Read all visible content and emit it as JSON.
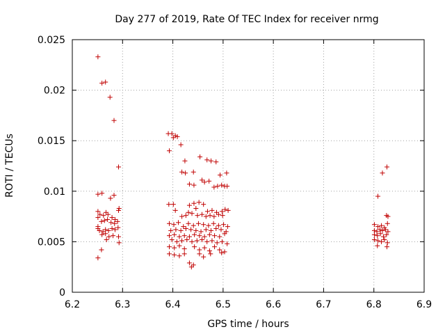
{
  "chart_data": {
    "type": "scatter",
    "title": "Day 277 of 2019, Rate Of TEC Index for receiver nrmg",
    "xlabel": "GPS time / hours",
    "ylabel": "ROTI / TECUs",
    "xlim": [
      6.2,
      6.9
    ],
    "ylim": [
      0,
      0.025
    ],
    "grid": true,
    "marker": "+",
    "marker_color": "#c00000",
    "xticks": [
      6.2,
      6.3,
      6.4,
      6.5,
      6.6,
      6.7,
      6.8,
      6.9
    ],
    "xtick_labels": [
      "6.2",
      "6.3",
      "6.4",
      "6.5",
      "6.6",
      "6.7",
      "6.8",
      "6.9"
    ],
    "yticks": [
      0,
      0.005,
      0.01,
      0.015,
      0.02,
      0.025
    ],
    "ytick_labels": [
      "0",
      "0.005",
      "0.01",
      "0.015",
      "0.02",
      "0.025"
    ],
    "series": [
      {
        "name": "ROTI",
        "points": [
          [
            6.251,
            0.0233
          ],
          [
            6.259,
            0.0207
          ],
          [
            6.266,
            0.0208
          ],
          [
            6.275,
            0.0193
          ],
          [
            6.283,
            0.017
          ],
          [
            6.292,
            0.0124
          ],
          [
            6.251,
            0.0097
          ],
          [
            6.259,
            0.0098
          ],
          [
            6.276,
            0.0093
          ],
          [
            6.283,
            0.0096
          ],
          [
            6.251,
            0.008
          ],
          [
            6.255,
            0.0077
          ],
          [
            6.262,
            0.0076
          ],
          [
            6.267,
            0.0079
          ],
          [
            6.271,
            0.0077
          ],
          [
            6.279,
            0.0074
          ],
          [
            6.285,
            0.0072
          ],
          [
            6.292,
            0.0081
          ],
          [
            6.293,
            0.0083
          ],
          [
            6.251,
            0.0074
          ],
          [
            6.258,
            0.007
          ],
          [
            6.264,
            0.0071
          ],
          [
            6.27,
            0.0072
          ],
          [
            6.277,
            0.0069
          ],
          [
            6.284,
            0.0068
          ],
          [
            6.29,
            0.007
          ],
          [
            6.251,
            0.0063
          ],
          [
            6.254,
            0.0061
          ],
          [
            6.261,
            0.006
          ],
          [
            6.266,
            0.0062
          ],
          [
            6.272,
            0.0061
          ],
          [
            6.279,
            0.0063
          ],
          [
            6.285,
            0.0062
          ],
          [
            6.291,
            0.0064
          ],
          [
            6.251,
            0.0065
          ],
          [
            6.259,
            0.0057
          ],
          [
            6.266,
            0.0058
          ],
          [
            6.273,
            0.0055
          ],
          [
            6.281,
            0.0056
          ],
          [
            6.292,
            0.0055
          ],
          [
            6.268,
            0.0052
          ],
          [
            6.293,
            0.0049
          ],
          [
            6.258,
            0.0042
          ],
          [
            6.251,
            0.0034
          ],
          [
            6.391,
            0.0157
          ],
          [
            6.398,
            0.0157
          ],
          [
            6.401,
            0.0153
          ],
          [
            6.405,
            0.0155
          ],
          [
            6.409,
            0.0154
          ],
          [
            6.393,
            0.014
          ],
          [
            6.416,
            0.0146
          ],
          [
            6.424,
            0.013
          ],
          [
            6.454,
            0.0134
          ],
          [
            6.468,
            0.0131
          ],
          [
            6.476,
            0.013
          ],
          [
            6.486,
            0.0129
          ],
          [
            6.418,
            0.0119
          ],
          [
            6.425,
            0.0118
          ],
          [
            6.441,
            0.0119
          ],
          [
            6.494,
            0.0116
          ],
          [
            6.507,
            0.0118
          ],
          [
            6.433,
            0.0107
          ],
          [
            6.442,
            0.0106
          ],
          [
            6.458,
            0.0111
          ],
          [
            6.463,
            0.0109
          ],
          [
            6.472,
            0.011
          ],
          [
            6.482,
            0.0104
          ],
          [
            6.489,
            0.0105
          ],
          [
            6.497,
            0.0106
          ],
          [
            6.503,
            0.0105
          ],
          [
            6.508,
            0.0105
          ],
          [
            6.392,
            0.0087
          ],
          [
            6.401,
            0.0087
          ],
          [
            6.433,
            0.0086
          ],
          [
            6.442,
            0.0088
          ],
          [
            6.452,
            0.0089
          ],
          [
            6.461,
            0.0087
          ],
          [
            6.405,
            0.0081
          ],
          [
            6.431,
            0.0079
          ],
          [
            6.446,
            0.0083
          ],
          [
            6.469,
            0.008
          ],
          [
            6.478,
            0.0081
          ],
          [
            6.487,
            0.0079
          ],
          [
            6.498,
            0.008
          ],
          [
            6.504,
            0.0082
          ],
          [
            6.51,
            0.0081
          ],
          [
            6.418,
            0.0075
          ],
          [
            6.426,
            0.0076
          ],
          [
            6.438,
            0.0078
          ],
          [
            6.449,
            0.0076
          ],
          [
            6.458,
            0.0077
          ],
          [
            6.466,
            0.0075
          ],
          [
            6.474,
            0.0076
          ],
          [
            6.482,
            0.0075
          ],
          [
            6.491,
            0.0077
          ],
          [
            6.499,
            0.0076
          ],
          [
            6.393,
            0.0068
          ],
          [
            6.402,
            0.0067
          ],
          [
            6.411,
            0.0069
          ],
          [
            6.421,
            0.0065
          ],
          [
            6.431,
            0.0068
          ],
          [
            6.441,
            0.0066
          ],
          [
            6.451,
            0.0068
          ],
          [
            6.461,
            0.0067
          ],
          [
            6.471,
            0.0066
          ],
          [
            6.481,
            0.0068
          ],
          [
            6.491,
            0.0066
          ],
          [
            6.501,
            0.0067
          ],
          [
            6.509,
            0.0065
          ],
          [
            6.396,
            0.0061
          ],
          [
            6.406,
            0.0062
          ],
          [
            6.416,
            0.0061
          ],
          [
            6.426,
            0.0063
          ],
          [
            6.436,
            0.0062
          ],
          [
            6.446,
            0.0061
          ],
          [
            6.456,
            0.006
          ],
          [
            6.466,
            0.0062
          ],
          [
            6.476,
            0.0061
          ],
          [
            6.486,
            0.0063
          ],
          [
            6.496,
            0.0062
          ],
          [
            6.506,
            0.006
          ],
          [
            6.393,
            0.0056
          ],
          [
            6.403,
            0.0057
          ],
          [
            6.413,
            0.0055
          ],
          [
            6.423,
            0.0056
          ],
          [
            6.433,
            0.0055
          ],
          [
            6.443,
            0.0057
          ],
          [
            6.453,
            0.0056
          ],
          [
            6.463,
            0.0055
          ],
          [
            6.473,
            0.0057
          ],
          [
            6.483,
            0.0056
          ],
          [
            6.493,
            0.0055
          ],
          [
            6.503,
            0.0058
          ],
          [
            6.398,
            0.0052
          ],
          [
            6.408,
            0.005
          ],
          [
            6.418,
            0.0051
          ],
          [
            6.428,
            0.0052
          ],
          [
            6.438,
            0.005
          ],
          [
            6.448,
            0.0051
          ],
          [
            6.458,
            0.0052
          ],
          [
            6.468,
            0.005
          ],
          [
            6.478,
            0.0051
          ],
          [
            6.488,
            0.0049
          ],
          [
            6.498,
            0.005
          ],
          [
            6.508,
            0.0048
          ],
          [
            6.393,
            0.0045
          ],
          [
            6.403,
            0.0044
          ],
          [
            6.413,
            0.0046
          ],
          [
            6.423,
            0.0043
          ],
          [
            6.443,
            0.0045
          ],
          [
            6.453,
            0.0042
          ],
          [
            6.463,
            0.0044
          ],
          [
            6.473,
            0.0041
          ],
          [
            6.483,
            0.0045
          ],
          [
            6.493,
            0.0042
          ],
          [
            6.503,
            0.004
          ],
          [
            6.393,
            0.0038
          ],
          [
            6.403,
            0.0037
          ],
          [
            6.413,
            0.0036
          ],
          [
            6.423,
            0.0038
          ],
          [
            6.453,
            0.0038
          ],
          [
            6.461,
            0.0035
          ],
          [
            6.475,
            0.0038
          ],
          [
            6.497,
            0.0039
          ],
          [
            6.433,
            0.0029
          ],
          [
            6.441,
            0.0027
          ],
          [
            6.437,
            0.0025
          ],
          [
            6.826,
            0.0124
          ],
          [
            6.817,
            0.0118
          ],
          [
            6.808,
            0.0095
          ],
          [
            6.825,
            0.0076
          ],
          [
            6.828,
            0.0075
          ],
          [
            6.801,
            0.0067
          ],
          [
            6.808,
            0.0065
          ],
          [
            6.815,
            0.0066
          ],
          [
            6.821,
            0.0064
          ],
          [
            6.827,
            0.0068
          ],
          [
            6.801,
            0.0061
          ],
          [
            6.806,
            0.006
          ],
          [
            6.812,
            0.0062
          ],
          [
            6.817,
            0.0061
          ],
          [
            6.823,
            0.0062
          ],
          [
            6.828,
            0.006
          ],
          [
            6.801,
            0.0057
          ],
          [
            6.807,
            0.0056
          ],
          [
            6.813,
            0.0058
          ],
          [
            6.819,
            0.0055
          ],
          [
            6.825,
            0.0057
          ],
          [
            6.801,
            0.0052
          ],
          [
            6.808,
            0.0051
          ],
          [
            6.815,
            0.005
          ],
          [
            6.821,
            0.0052
          ],
          [
            6.827,
            0.0049
          ],
          [
            6.807,
            0.0046
          ],
          [
            6.826,
            0.0045
          ]
        ]
      }
    ]
  }
}
